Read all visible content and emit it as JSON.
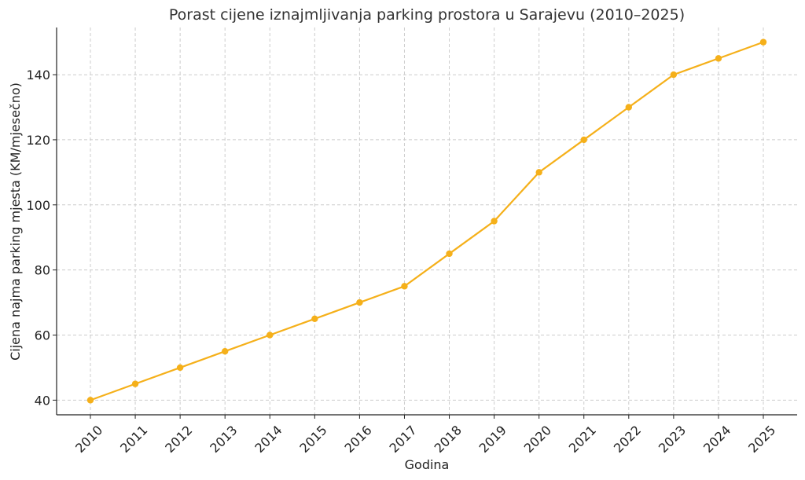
{
  "chart_data": {
    "type": "line",
    "title": "Porast cijene iznajmljivanja parking prostora u Sarajevu (2010–2025)",
    "xlabel": "Godina",
    "ylabel": "Cijena najma parking mjesta (KM/mjesečno)",
    "categories": [
      "2010",
      "2011",
      "2012",
      "2013",
      "2014",
      "2015",
      "2016",
      "2017",
      "2018",
      "2019",
      "2020",
      "2021",
      "2022",
      "2023",
      "2024",
      "2025"
    ],
    "series": [
      {
        "values": [
          40,
          45,
          50,
          55,
          60,
          65,
          70,
          75,
          85,
          95,
          110,
          120,
          130,
          140,
          145,
          150
        ],
        "color": "#f5b01a"
      }
    ],
    "yticks": [
      40,
      60,
      80,
      100,
      120,
      140
    ],
    "ylim": [
      35.5,
      154.5
    ],
    "grid": true,
    "legend": "none"
  }
}
